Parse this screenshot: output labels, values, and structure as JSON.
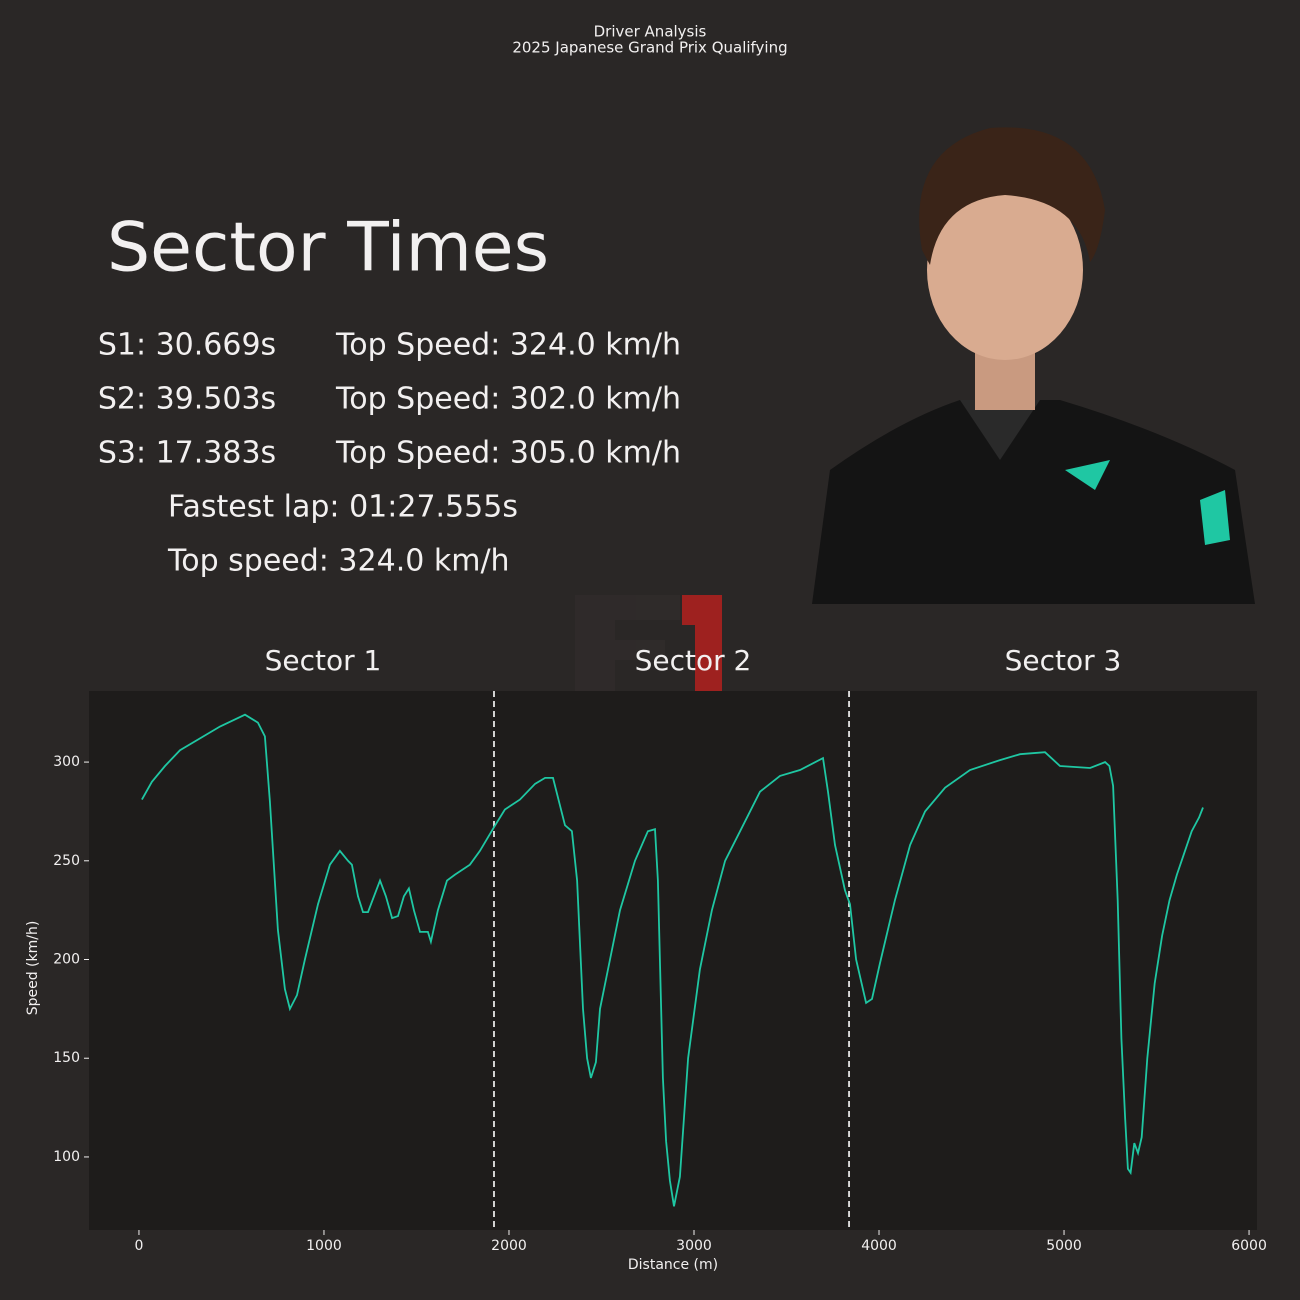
{
  "header": {
    "title": "Driver Analysis",
    "subtitle": "2025 Japanese Grand Prix Qualifying"
  },
  "panel": {
    "title": "Sector Times",
    "sectors": [
      {
        "time": "S1: 30.669s",
        "top_speed": "Top Speed: 324.0 km/h"
      },
      {
        "time": "S2: 39.503s",
        "top_speed": "Top Speed: 302.0 km/h"
      },
      {
        "time": "S3: 17.383s",
        "top_speed": "Top Speed: 305.0 km/h"
      }
    ],
    "fastest_lap": "Fastest lap: 01:27.555s",
    "top_speed": "Top speed: 324.0 km/h"
  },
  "chart_data": {
    "type": "line",
    "sector_titles": [
      "Sector 1",
      "Sector 2",
      "Sector 3"
    ],
    "sector_boundaries": [
      1919,
      3838
    ],
    "x_label": "Distance (m)",
    "y_label": "Speed (km/h)",
    "xlim": [
      -270,
      6043
    ],
    "ylim": [
      63,
      336
    ],
    "xticks": [
      0,
      1000,
      2000,
      3000,
      4000,
      5000,
      6000
    ],
    "yticks": [
      100,
      150,
      200,
      250,
      300
    ],
    "grid": false,
    "x": [
      16,
      70,
      141,
      222,
      330,
      438,
      573,
      643,
      681,
      708,
      751,
      789,
      816,
      854,
      897,
      968,
      1032,
      1086,
      1130,
      1151,
      1184,
      1211,
      1238,
      1303,
      1335,
      1368,
      1400,
      1432,
      1459,
      1486,
      1519,
      1562,
      1578,
      1616,
      1665,
      1708,
      1789,
      1843,
      1919,
      1978,
      2059,
      2141,
      2195,
      2238,
      2303,
      2340,
      2368,
      2400,
      2422,
      2443,
      2470,
      2492,
      2546,
      2600,
      2681,
      2751,
      2789,
      2805,
      2832,
      2849,
      2870,
      2892,
      2924,
      2968,
      3032,
      3097,
      3168,
      3249,
      3357,
      3465,
      3573,
      3697,
      3724,
      3762,
      3816,
      3843,
      3876,
      3930,
      3962,
      4005,
      4086,
      4168,
      4249,
      4357,
      4492,
      4654,
      4762,
      4897,
      4978,
      5141,
      5222,
      5245,
      5265,
      5290,
      5310,
      5330,
      5345,
      5360,
      5380,
      5400,
      5420,
      5450,
      5490,
      5530,
      5570,
      5610,
      5650,
      5690,
      5730,
      5751
    ],
    "series": [
      {
        "name": "Speed",
        "color": "#1fc7a3",
        "values": [
          281,
          290,
          298,
          306,
          312,
          318,
          324,
          320,
          313,
          280,
          215,
          185,
          175,
          182,
          200,
          228,
          248,
          255,
          250,
          248,
          232,
          224,
          224,
          240,
          232,
          221,
          222,
          232,
          236,
          225,
          214,
          214,
          209,
          225,
          240,
          243,
          248,
          255,
          267,
          276,
          281,
          289,
          292,
          292,
          268,
          265,
          240,
          175,
          150,
          140,
          148,
          175,
          200,
          225,
          250,
          265,
          266,
          240,
          140,
          108,
          88,
          75,
          90,
          150,
          195,
          225,
          250,
          265,
          285,
          293,
          296,
          302,
          285,
          258,
          235,
          228,
          200,
          178,
          180,
          198,
          230,
          258,
          275,
          287,
          296,
          301,
          304,
          305,
          298,
          297,
          300,
          298,
          288,
          230,
          160,
          120,
          94,
          92,
          107,
          102,
          110,
          150,
          188,
          212,
          230,
          243,
          254,
          265,
          272,
          277
        ]
      }
    ]
  }
}
